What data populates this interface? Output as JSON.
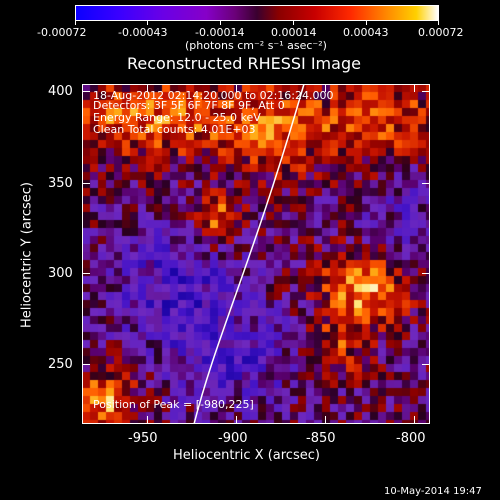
{
  "colorbar": {
    "ticks": [
      "-0.00072",
      "-0.00043",
      "-0.00014",
      "0.00014",
      "0.00043",
      "0.00072"
    ],
    "units": "(photons cm⁻² s⁻¹ asec⁻²)"
  },
  "title": "Reconstructed RHESSI Image",
  "annotations": {
    "time": "18-Aug-2012 02:14:20.000 to 02:16:24.000",
    "detectors": "Detectors: 3F 5F 6F 7F 8F 9F, Att 0",
    "energy": "Energy Range: 12.0 - 25.0 keV",
    "clean": "Clean     Total counts: 4.01E+03",
    "peak": "Position of Peak = [-980,225]"
  },
  "x_axis": {
    "label": "Heliocentric X (arcsec)",
    "ticks": [
      "-950",
      "-900",
      "-850",
      "-800"
    ]
  },
  "y_axis": {
    "label": "Heliocentric Y (arcsec)",
    "ticks": [
      "400",
      "350",
      "300",
      "250"
    ]
  },
  "footer_date": "10-May-2014 19:47",
  "colors": {
    "background": "#000000",
    "limb_line": "#ffffff"
  }
}
